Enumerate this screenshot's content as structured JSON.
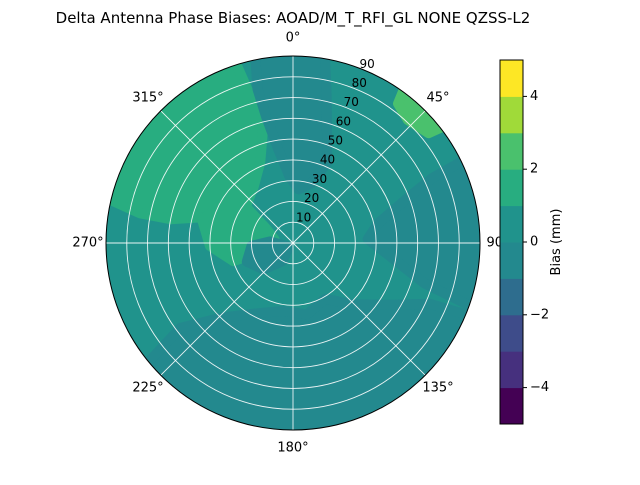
{
  "page": {
    "title": "Delta Antenna Phase Biases: AOAD/M_T_RFI_GL NONE QZSS-L2"
  },
  "chart_data": {
    "type": "heatmap",
    "projection": "polar",
    "title": "Delta Antenna Phase Biases: AOAD/M_T_RFI_GL NONE QZSS-L2",
    "theta_ticks_deg": [
      0,
      45,
      90,
      135,
      180,
      225,
      270,
      315
    ],
    "theta_tick_labels": [
      "0°",
      "45°",
      "90°",
      "135°",
      "180°",
      "225°",
      "270°",
      "315°"
    ],
    "r_ticks": [
      10,
      20,
      30,
      40,
      50,
      60,
      70,
      80,
      90
    ],
    "r_tick_labels": [
      "10",
      "20",
      "30",
      "40",
      "50",
      "60",
      "70",
      "80",
      "90"
    ],
    "r_max": 90,
    "r_label_angle_deg": 22.5,
    "grid": true,
    "grid_color": "#ffffff",
    "levels_mm": [
      -5,
      -4,
      -3,
      -2,
      -1,
      0,
      1,
      2,
      3,
      4,
      5
    ],
    "colorbar": {
      "label": "Bias (mm)",
      "ticks": [
        4,
        2,
        0,
        -2,
        -4
      ],
      "tick_labels": [
        "4",
        "2",
        "0",
        "−2",
        "−4"
      ],
      "vmin": -5,
      "vmax": 5,
      "colormap": "viridis",
      "band_colors_bottom_to_top": [
        "#440154",
        "#46307e",
        "#3e4c8a",
        "#2e6d8e",
        "#23898e",
        "#20938c",
        "#28ad80",
        "#4ac16d",
        "#a0da39",
        "#fde725"
      ]
    },
    "base_band": {
      "value_range_mm": [
        0,
        1
      ],
      "color": "#20938c"
    },
    "regions": [
      {
        "name": "upper-left-positive-patch",
        "value_range_mm": [
          1,
          2
        ],
        "color": "#28ad80",
        "points": [
          [
            284,
            90
          ],
          [
            298,
            90
          ],
          [
            312,
            90
          ],
          [
            326,
            90
          ],
          [
            342,
            90
          ],
          [
            344,
            72
          ],
          [
            345,
            56
          ],
          [
            338,
            42
          ],
          [
            325,
            33
          ],
          [
            310,
            29
          ],
          [
            296,
            33
          ],
          [
            286,
            45
          ],
          [
            281,
            60
          ],
          [
            281,
            75
          ]
        ]
      },
      {
        "name": "center-left-positive-patch",
        "value_range_mm": [
          1,
          2
        ],
        "color": "#28ad80",
        "points": [
          [
            253,
            30
          ],
          [
            268,
            40
          ],
          [
            284,
            45
          ],
          [
            299,
            39
          ],
          [
            307,
            27
          ],
          [
            299,
            15
          ],
          [
            281,
            9
          ],
          [
            263,
            13
          ],
          [
            254,
            21
          ]
        ]
      },
      {
        "name": "top-negative-tongue",
        "value_range_mm": [
          -1,
          0
        ],
        "color": "#23898e",
        "points": [
          [
            349,
            90
          ],
          [
            357,
            90
          ],
          [
            4,
            90
          ],
          [
            9,
            90
          ],
          [
            13,
            72
          ],
          [
            17,
            56
          ],
          [
            23,
            42
          ],
          [
            17,
            30
          ],
          [
            6,
            26
          ],
          [
            357,
            32
          ],
          [
            351,
            46
          ],
          [
            348,
            62
          ],
          [
            347,
            76
          ]
        ]
      },
      {
        "name": "right-negative-wedge",
        "value_range_mm": [
          -1,
          0
        ],
        "color": "#23898e",
        "points": [
          [
            64,
            90
          ],
          [
            76,
            90
          ],
          [
            88,
            90
          ],
          [
            100,
            90
          ],
          [
            110,
            90
          ],
          [
            107,
            66
          ],
          [
            97,
            46
          ],
          [
            87,
            36
          ],
          [
            77,
            42
          ],
          [
            69,
            58
          ],
          [
            65,
            74
          ]
        ]
      },
      {
        "name": "bottom-negative-region",
        "value_range_mm": [
          -1,
          0
        ],
        "color": "#23898e",
        "points": [
          [
            112,
            90
          ],
          [
            127,
            90
          ],
          [
            142,
            90
          ],
          [
            157,
            90
          ],
          [
            172,
            90
          ],
          [
            187,
            90
          ],
          [
            202,
            90
          ],
          [
            217,
            90
          ],
          [
            230,
            90
          ],
          [
            233,
            68
          ],
          [
            224,
            50
          ],
          [
            207,
            38
          ],
          [
            188,
            33
          ],
          [
            169,
            35
          ],
          [
            150,
            31
          ],
          [
            136,
            41
          ],
          [
            122,
            56
          ],
          [
            114,
            72
          ]
        ]
      },
      {
        "name": "center-negative-blob",
        "value_range_mm": [
          -1,
          0
        ],
        "color": "#23898e",
        "points": [
          [
            210,
            10
          ],
          [
            228,
            19
          ],
          [
            248,
            24
          ],
          [
            266,
            20
          ],
          [
            274,
            11
          ],
          [
            259,
            5
          ],
          [
            238,
            3
          ],
          [
            220,
            4
          ]
        ]
      },
      {
        "name": "edge-positive-sliver",
        "value_range_mm": [
          2,
          3
        ],
        "color": "#4ac16d",
        "points": [
          [
            35,
            90
          ],
          [
            44,
            90
          ],
          [
            53,
            90
          ],
          [
            51,
            84
          ],
          [
            43,
            81
          ],
          [
            37,
            84
          ]
        ]
      }
    ]
  }
}
